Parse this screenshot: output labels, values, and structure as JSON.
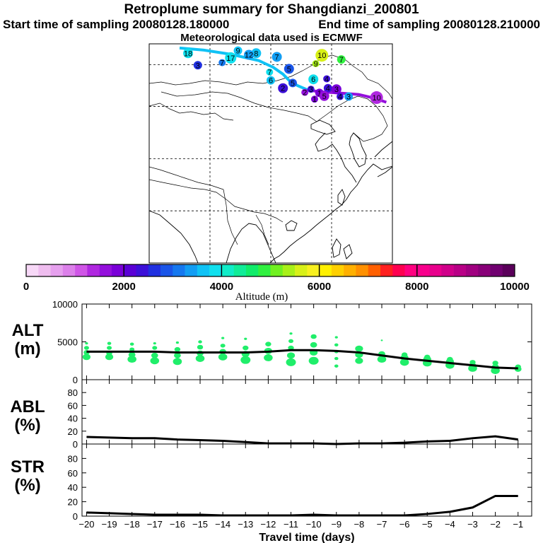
{
  "header": {
    "title": "Retroplume summary for Shangdianzi_200801",
    "start_text": "Start time of sampling 20080128.180000",
    "end_text": "End time of sampling 20080128.210000",
    "met_text": "Meteorological data used is ECMWF"
  },
  "colorbar": {
    "label": "Altitude (m)",
    "tick_labels": [
      "0",
      "2000",
      "4000",
      "6000",
      "8000",
      "10000"
    ],
    "colors": [
      "#f7d8f7",
      "#efbdef",
      "#e6a0ee",
      "#dc80ea",
      "#cf55e6",
      "#b028e0",
      "#9410dc",
      "#7a00d8",
      "#5a00d5",
      "#3c10d8",
      "#2030e0",
      "#1a55e8",
      "#1578ef",
      "#129df3",
      "#10c2f5",
      "#10e0ee",
      "#10ecc8",
      "#10ec98",
      "#10ec6a",
      "#30f040",
      "#70f020",
      "#a8f018",
      "#d8f018",
      "#f8f020",
      "#fff000",
      "#ffd000",
      "#ffb000",
      "#ff9000",
      "#ff6000",
      "#ff2020",
      "#ff0050",
      "#ff0080",
      "#f8008c",
      "#e8008c",
      "#d0008a",
      "#b80086",
      "#a00080",
      "#880078",
      "#700070",
      "#5a005a"
    ]
  },
  "map": {
    "markers": [
      {
        "lon": 103.2,
        "lat": 50.2,
        "label": "18",
        "color": "#10e0ee"
      },
      {
        "lon": 107.3,
        "lat": 50.7,
        "label": "9",
        "color": "#10c2f5"
      },
      {
        "lon": 108.8,
        "lat": 50.2,
        "label": "8",
        "color": "#10c2f5"
      },
      {
        "lon": 108.2,
        "lat": 49.9,
        "label": "12",
        "color": "#129df3"
      },
      {
        "lon": 106.7,
        "lat": 49.3,
        "label": "17",
        "color": "#10e0ee"
      },
      {
        "lon": 110.5,
        "lat": 49.5,
        "label": "7",
        "color": "#129df3"
      },
      {
        "lon": 106.0,
        "lat": 48.4,
        "label": "7",
        "color": "#1578ef"
      },
      {
        "lon": 104.0,
        "lat": 47.9,
        "label": "3",
        "color": "#2030e0"
      },
      {
        "lon": 114.2,
        "lat": 49.8,
        "label": "10",
        "color": "#d8f018"
      },
      {
        "lon": 113.7,
        "lat": 48.2,
        "label": "9",
        "color": "#a8f018"
      },
      {
        "lon": 115.8,
        "lat": 49.0,
        "label": "7",
        "color": "#30f040"
      },
      {
        "lon": 111.5,
        "lat": 47.2,
        "label": "5",
        "color": "#1a55e8"
      },
      {
        "lon": 109.9,
        "lat": 46.6,
        "label": "7",
        "color": "#10e0ee"
      },
      {
        "lon": 110.0,
        "lat": 45.0,
        "label": "6",
        "color": "#10c2f5"
      },
      {
        "lon": 113.5,
        "lat": 45.2,
        "label": "6",
        "color": "#10e0ee"
      },
      {
        "lon": 114.6,
        "lat": 45.3,
        "label": "4",
        "color": "#3c10d8"
      },
      {
        "lon": 111.8,
        "lat": 44.5,
        "label": "5",
        "color": "#1a55e8"
      },
      {
        "lon": 111.0,
        "lat": 43.5,
        "label": "2",
        "color": "#3c10d8"
      },
      {
        "lon": 113.3,
        "lat": 43.3,
        "label": "3",
        "color": "#3c10d8"
      },
      {
        "lon": 114.7,
        "lat": 43.5,
        "label": "4",
        "color": "#3c10d8"
      },
      {
        "lon": 115.4,
        "lat": 43.3,
        "label": "3",
        "color": "#7a00d8"
      },
      {
        "lon": 112.8,
        "lat": 42.7,
        "label": "2",
        "color": "#9410dc"
      },
      {
        "lon": 114.0,
        "lat": 42.6,
        "label": "1",
        "color": "#7a00d8"
      },
      {
        "lon": 114.4,
        "lat": 42.0,
        "label": "5",
        "color": "#9410dc"
      },
      {
        "lon": 115.7,
        "lat": 41.9,
        "label": "4",
        "color": "#3c10d8"
      },
      {
        "lon": 116.4,
        "lat": 41.9,
        "label": "3",
        "color": "#129df3"
      },
      {
        "lon": 118.7,
        "lat": 41.7,
        "label": "10",
        "color": "#b028e0"
      },
      {
        "lon": 113.6,
        "lat": 41.4,
        "label": "1",
        "color": "#7a00d8"
      }
    ]
  },
  "chart_data": [
    {
      "type": "scatter",
      "panel": "ALT",
      "ylabel": "ALT\n(m)",
      "ylim": [
        0,
        10000
      ],
      "yticks": [
        "0",
        "5000",
        "10000"
      ],
      "xlim": [
        -20.2,
        -0.4
      ],
      "x": [
        -20,
        -19,
        -18,
        -17,
        -16,
        -15,
        -14,
        -13,
        -12,
        -11,
        -10,
        -9,
        -8,
        -7,
        -6,
        -5,
        -4,
        -3,
        -2,
        -1
      ],
      "series": [
        {
          "name": "median altitude",
          "color": "#000000",
          "values": [
            3700,
            3700,
            3700,
            3700,
            3600,
            3600,
            3600,
            3600,
            3700,
            3900,
            3900,
            3800,
            3600,
            3200,
            2800,
            2500,
            2200,
            1900,
            1600,
            1500
          ]
        }
      ],
      "plume_points": [
        {
          "x": -20,
          "alt": [
            3000,
            3600,
            4200,
            4800
          ],
          "size": [
            8,
            6,
            5,
            3
          ]
        },
        {
          "x": -19,
          "alt": [
            3000,
            3500,
            4200,
            4800
          ],
          "size": [
            8,
            6,
            5,
            4
          ]
        },
        {
          "x": -18,
          "alt": [
            2700,
            3300,
            4000,
            4700
          ],
          "size": [
            9,
            7,
            5,
            4
          ]
        },
        {
          "x": -17,
          "alt": [
            2500,
            3200,
            4200,
            4800
          ],
          "size": [
            9,
            7,
            5,
            3
          ]
        },
        {
          "x": -16,
          "alt": [
            2400,
            3200,
            4000,
            4900
          ],
          "size": [
            9,
            7,
            6,
            3
          ]
        },
        {
          "x": -15,
          "alt": [
            2800,
            3500,
            4300,
            5000
          ],
          "size": [
            9,
            7,
            6,
            4
          ]
        },
        {
          "x": -14,
          "alt": [
            3000,
            3700,
            4500,
            5500
          ],
          "size": [
            9,
            7,
            5,
            3
          ]
        },
        {
          "x": -13,
          "alt": [
            2600,
            3400,
            4200,
            5400
          ],
          "size": [
            10,
            8,
            6,
            3
          ]
        },
        {
          "x": -12,
          "alt": [
            2900,
            3800,
            4700
          ],
          "size": [
            9,
            8,
            6
          ]
        },
        {
          "x": -11,
          "alt": [
            2300,
            3200,
            4200,
            5100,
            6100
          ],
          "size": [
            10,
            8,
            6,
            5,
            3
          ]
        },
        {
          "x": -10,
          "alt": [
            2500,
            3600,
            4600,
            5700
          ],
          "size": [
            10,
            8,
            7,
            6
          ]
        },
        {
          "x": -9,
          "alt": [
            1800,
            2800,
            3700,
            4600,
            5600
          ],
          "size": [
            4,
            4,
            4,
            4,
            3
          ]
        },
        {
          "x": -8,
          "alt": [
            2500,
            3300,
            4100
          ],
          "size": [
            8,
            8,
            8
          ]
        },
        {
          "x": -7,
          "alt": [
            2700,
            3400,
            5200
          ],
          "size": [
            9,
            7,
            2
          ]
        },
        {
          "x": -6,
          "alt": [
            2300,
            2900,
            3300
          ],
          "size": [
            9,
            8,
            6
          ]
        },
        {
          "x": -5,
          "alt": [
            2200,
            2700,
            3000
          ],
          "size": [
            9,
            8,
            6
          ]
        },
        {
          "x": -4,
          "alt": [
            1900,
            2400,
            2700
          ],
          "size": [
            9,
            8,
            6
          ]
        },
        {
          "x": -3,
          "alt": [
            1500,
            1900,
            2300
          ],
          "size": [
            9,
            7,
            6
          ]
        },
        {
          "x": -2,
          "alt": [
            1200,
            1700,
            2200
          ],
          "size": [
            9,
            7,
            6
          ]
        },
        {
          "x": -1,
          "alt": [
            1400,
            1700
          ],
          "size": [
            7,
            6
          ]
        }
      ]
    },
    {
      "type": "line",
      "panel": "ABL",
      "ylabel": "ABL\n(%)",
      "ylim": [
        0,
        100
      ],
      "yticks": [
        "0",
        "20",
        "40",
        "60",
        "80"
      ],
      "x": [
        -20,
        -19,
        -18,
        -17,
        -16,
        -15,
        -14,
        -13,
        -12,
        -11,
        -10,
        -9,
        -8,
        -7,
        -6,
        -5,
        -4,
        -3,
        -2,
        -1
      ],
      "series": [
        {
          "name": "ABL fraction",
          "color": "#000000",
          "values": [
            11,
            10,
            9,
            9,
            7,
            6,
            5,
            3,
            1,
            1,
            1,
            0,
            1,
            1,
            2,
            4,
            5,
            9,
            12,
            7
          ]
        }
      ]
    },
    {
      "type": "line",
      "panel": "STR",
      "ylabel": "STR\n(%)",
      "ylim": [
        0,
        100
      ],
      "yticks": [
        "0",
        "20",
        "40",
        "60",
        "80"
      ],
      "xlabel": "Travel time (days)",
      "xticks": [
        "-20",
        "-19",
        "-18",
        "-17",
        "-16",
        "-15",
        "-14",
        "-13",
        "-12",
        "-11",
        "-10",
        "-9",
        "-8",
        "-7",
        "-6",
        "-5",
        "-4",
        "-3",
        "-2",
        "-1"
      ],
      "x": [
        -20,
        -19,
        -18,
        -17,
        -16,
        -15,
        -14,
        -13,
        -12,
        -11,
        -10,
        -9,
        -8,
        -7,
        -6,
        -5,
        -4,
        -3,
        -2,
        -1
      ],
      "series": [
        {
          "name": "stratospheric fraction",
          "color": "#000000",
          "values": [
            5,
            4,
            3,
            2,
            2,
            2,
            1,
            1,
            1,
            1,
            2,
            1,
            1,
            1,
            1,
            3,
            6,
            12,
            28,
            28
          ]
        }
      ]
    }
  ]
}
